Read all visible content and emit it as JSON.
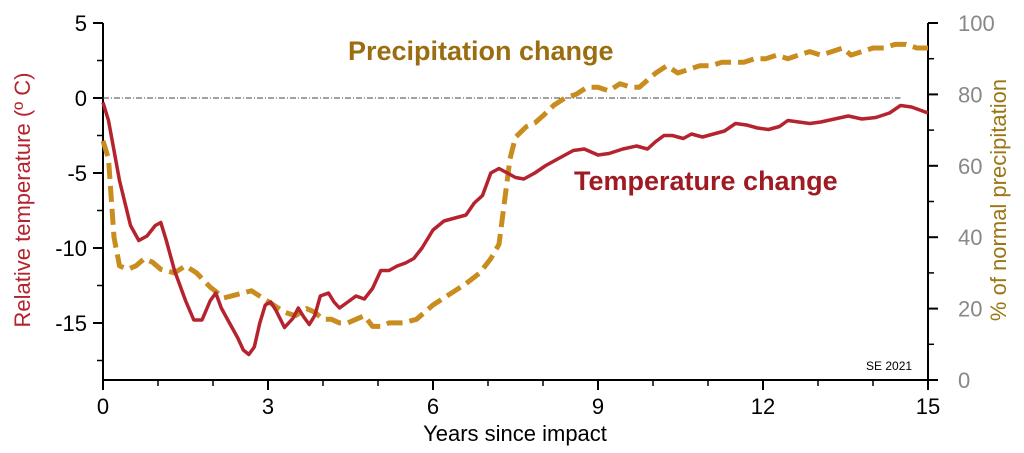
{
  "chart_data": {
    "type": "line",
    "x_axis": {
      "label": "Years since impact",
      "range": [
        0,
        15
      ],
      "ticks": [
        0,
        3,
        6,
        9,
        12,
        15
      ]
    },
    "y_axis_left": {
      "label": "Relative temperature (º C)",
      "range": [
        -18.8,
        5
      ],
      "ticks": [
        5,
        0,
        -5,
        -10,
        -15
      ],
      "color": "#b5232e"
    },
    "y_axis_right": {
      "label": "% of normal precipitation",
      "range": [
        0,
        100
      ],
      "ticks": [
        0,
        20,
        40,
        60,
        80,
        100
      ],
      "color": "#888888"
    },
    "reference_line": {
      "y": 0,
      "x_range": [
        0,
        14.5
      ],
      "style": "dashed"
    },
    "annotation": "SE 2021",
    "series": [
      {
        "name": "Temperature change",
        "axis": "left",
        "color": "#b5232e",
        "style": "solid",
        "points": [
          [
            0,
            -0.3
          ],
          [
            0.1,
            -1.5
          ],
          [
            0.3,
            -5.5
          ],
          [
            0.5,
            -8.5
          ],
          [
            0.65,
            -9.5
          ],
          [
            0.8,
            -9.2
          ],
          [
            0.95,
            -8.5
          ],
          [
            1.05,
            -8.3
          ],
          [
            1.15,
            -9.5
          ],
          [
            1.3,
            -11.5
          ],
          [
            1.5,
            -13.5
          ],
          [
            1.65,
            -14.8
          ],
          [
            1.8,
            -14.8
          ],
          [
            1.95,
            -13.5
          ],
          [
            2.05,
            -13.0
          ],
          [
            2.15,
            -14.0
          ],
          [
            2.3,
            -15.0
          ],
          [
            2.45,
            -16.0
          ],
          [
            2.55,
            -16.8
          ],
          [
            2.65,
            -17.1
          ],
          [
            2.75,
            -16.6
          ],
          [
            2.85,
            -15.0
          ],
          [
            2.95,
            -13.8
          ],
          [
            3.05,
            -13.6
          ],
          [
            3.15,
            -14.2
          ],
          [
            3.3,
            -15.3
          ],
          [
            3.45,
            -14.7
          ],
          [
            3.55,
            -14.0
          ],
          [
            3.65,
            -14.6
          ],
          [
            3.75,
            -15.1
          ],
          [
            3.85,
            -14.5
          ],
          [
            3.95,
            -13.2
          ],
          [
            4.1,
            -13.0
          ],
          [
            4.2,
            -13.6
          ],
          [
            4.3,
            -14.0
          ],
          [
            4.45,
            -13.6
          ],
          [
            4.6,
            -13.2
          ],
          [
            4.75,
            -13.4
          ],
          [
            4.9,
            -12.7
          ],
          [
            5.05,
            -11.5
          ],
          [
            5.2,
            -11.5
          ],
          [
            5.35,
            -11.2
          ],
          [
            5.5,
            -11.0
          ],
          [
            5.65,
            -10.7
          ],
          [
            5.8,
            -10.0
          ],
          [
            6.0,
            -8.8
          ],
          [
            6.2,
            -8.2
          ],
          [
            6.4,
            -8.0
          ],
          [
            6.6,
            -7.8
          ],
          [
            6.75,
            -7.0
          ],
          [
            6.9,
            -6.5
          ],
          [
            7.05,
            -5.0
          ],
          [
            7.2,
            -4.7
          ],
          [
            7.35,
            -5.0
          ],
          [
            7.5,
            -5.3
          ],
          [
            7.65,
            -5.4
          ],
          [
            7.85,
            -5.0
          ],
          [
            8.05,
            -4.5
          ],
          [
            8.3,
            -4.0
          ],
          [
            8.55,
            -3.5
          ],
          [
            8.75,
            -3.4
          ],
          [
            9.0,
            -3.8
          ],
          [
            9.2,
            -3.7
          ],
          [
            9.45,
            -3.4
          ],
          [
            9.7,
            -3.2
          ],
          [
            9.9,
            -3.4
          ],
          [
            10.05,
            -2.9
          ],
          [
            10.2,
            -2.5
          ],
          [
            10.35,
            -2.5
          ],
          [
            10.55,
            -2.7
          ],
          [
            10.7,
            -2.4
          ],
          [
            10.9,
            -2.6
          ],
          [
            11.1,
            -2.4
          ],
          [
            11.3,
            -2.2
          ],
          [
            11.5,
            -1.7
          ],
          [
            11.7,
            -1.8
          ],
          [
            11.9,
            -2.0
          ],
          [
            12.1,
            -2.1
          ],
          [
            12.3,
            -1.9
          ],
          [
            12.45,
            -1.5
          ],
          [
            12.65,
            -1.6
          ],
          [
            12.85,
            -1.7
          ],
          [
            13.05,
            -1.6
          ],
          [
            13.3,
            -1.4
          ],
          [
            13.55,
            -1.2
          ],
          [
            13.8,
            -1.4
          ],
          [
            14.05,
            -1.3
          ],
          [
            14.3,
            -1.0
          ],
          [
            14.5,
            -0.5
          ],
          [
            14.7,
            -0.6
          ],
          [
            14.85,
            -0.8
          ],
          [
            15,
            -1.0
          ]
        ]
      },
      {
        "name": "Precipitation change",
        "axis": "right",
        "color": "#c98c1e",
        "style": "dashed",
        "points": [
          [
            0,
            67
          ],
          [
            0.1,
            62
          ],
          [
            0.2,
            40
          ],
          [
            0.3,
            32
          ],
          [
            0.45,
            31
          ],
          [
            0.6,
            32
          ],
          [
            0.75,
            34
          ],
          [
            0.9,
            33
          ],
          [
            1.05,
            31
          ],
          [
            1.3,
            30
          ],
          [
            1.5,
            32
          ],
          [
            1.7,
            30
          ],
          [
            1.95,
            26
          ],
          [
            2.2,
            23
          ],
          [
            2.45,
            24
          ],
          [
            2.7,
            25
          ],
          [
            2.9,
            23
          ],
          [
            3.1,
            21
          ],
          [
            3.3,
            19
          ],
          [
            3.5,
            18
          ],
          [
            3.7,
            20
          ],
          [
            3.85,
            19
          ],
          [
            4.0,
            17
          ],
          [
            4.15,
            17
          ],
          [
            4.3,
            16
          ],
          [
            4.45,
            16
          ],
          [
            4.6,
            17
          ],
          [
            4.75,
            18
          ],
          [
            4.9,
            15
          ],
          [
            5.05,
            15
          ],
          [
            5.2,
            16
          ],
          [
            5.45,
            16
          ],
          [
            5.7,
            17
          ],
          [
            6.0,
            21
          ],
          [
            6.3,
            24
          ],
          [
            6.6,
            27
          ],
          [
            6.85,
            30
          ],
          [
            7.05,
            34
          ],
          [
            7.2,
            38
          ],
          [
            7.3,
            50
          ],
          [
            7.4,
            62
          ],
          [
            7.5,
            68
          ],
          [
            7.7,
            71
          ],
          [
            7.85,
            72
          ],
          [
            8.0,
            74
          ],
          [
            8.2,
            77
          ],
          [
            8.4,
            79
          ],
          [
            8.6,
            80
          ],
          [
            8.8,
            82
          ],
          [
            9.0,
            82
          ],
          [
            9.2,
            81
          ],
          [
            9.4,
            83
          ],
          [
            9.6,
            82
          ],
          [
            9.75,
            82
          ],
          [
            9.9,
            84
          ],
          [
            10.05,
            86
          ],
          [
            10.25,
            88
          ],
          [
            10.45,
            86
          ],
          [
            10.65,
            87
          ],
          [
            10.85,
            88
          ],
          [
            11.05,
            88
          ],
          [
            11.25,
            89
          ],
          [
            11.45,
            89
          ],
          [
            11.65,
            89
          ],
          [
            11.85,
            90
          ],
          [
            12.05,
            90
          ],
          [
            12.25,
            91
          ],
          [
            12.45,
            90
          ],
          [
            12.65,
            91
          ],
          [
            12.85,
            92
          ],
          [
            13.05,
            91
          ],
          [
            13.25,
            92
          ],
          [
            13.45,
            93
          ],
          [
            13.6,
            91
          ],
          [
            13.8,
            92
          ],
          [
            14.0,
            93
          ],
          [
            14.2,
            93
          ],
          [
            14.4,
            94
          ],
          [
            14.6,
            94
          ],
          [
            14.8,
            93
          ],
          [
            15,
            93
          ]
        ]
      }
    ]
  }
}
